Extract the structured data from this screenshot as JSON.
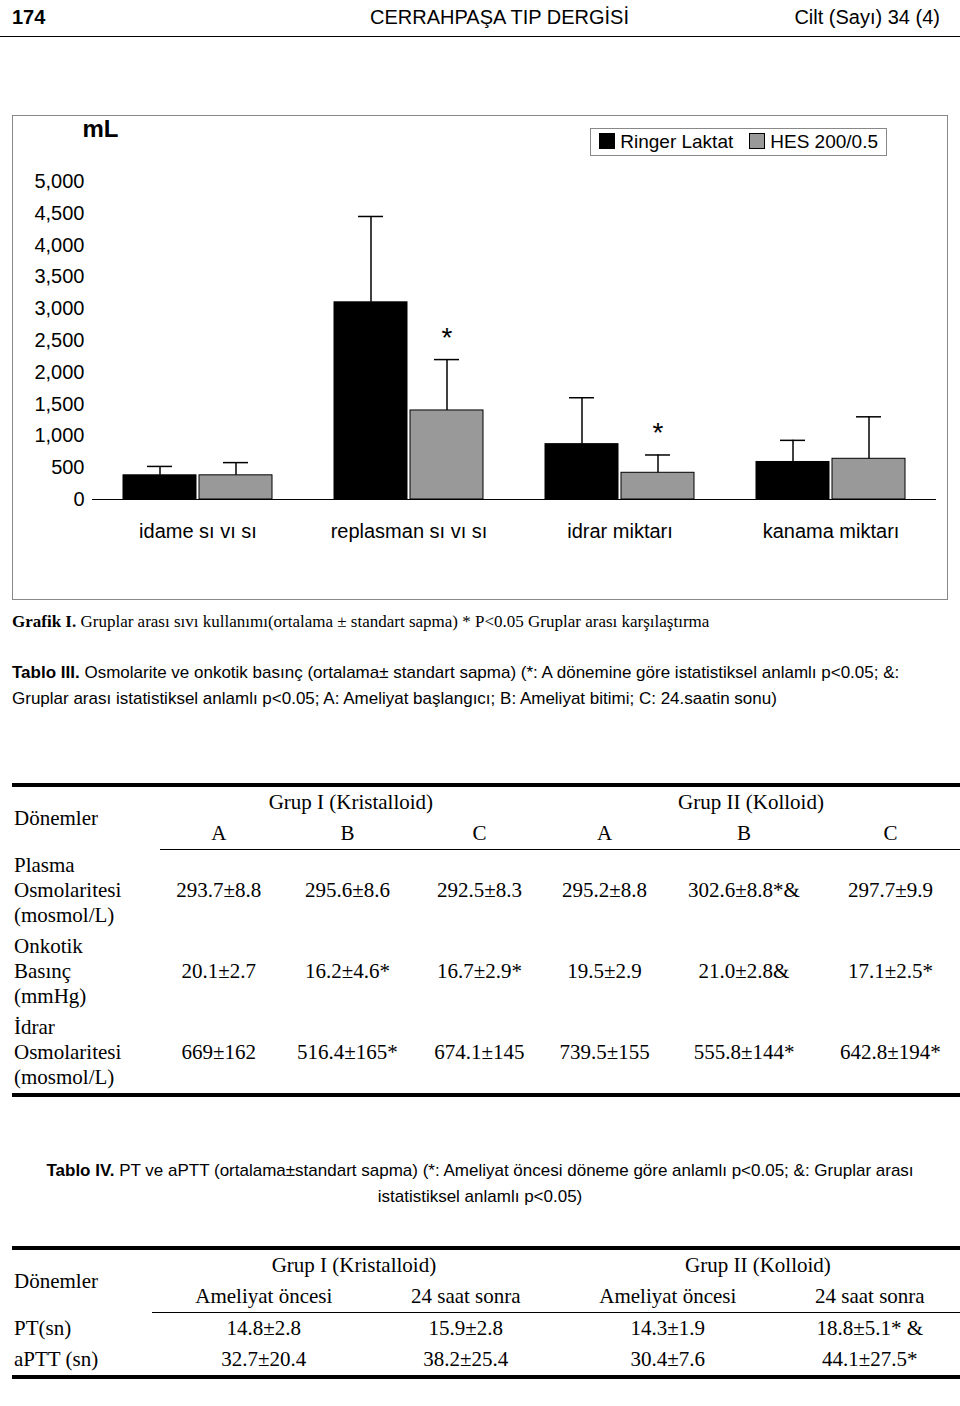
{
  "header": {
    "page": "174",
    "journal": "CERRAHPAŞA TIP DERGİSİ",
    "volume": "Cilt (Sayı) 34 (4)"
  },
  "chart_data": {
    "type": "bar",
    "y_label": "mL",
    "categories": [
      "idame sı vı sı",
      "replasman sı vı sı",
      "idrar miktarı",
      "kanama miktarı"
    ],
    "series": [
      {
        "name": "Ringer Laktat",
        "color": "#000000",
        "values": [
          380,
          3100,
          870,
          590
        ],
        "errors": [
          140,
          1350,
          730,
          340
        ]
      },
      {
        "name": "HES 200/0.5",
        "color": "#999999",
        "values": [
          380,
          1400,
          420,
          640
        ],
        "errors": [
          200,
          800,
          280,
          660
        ]
      }
    ],
    "annotations": [
      {
        "category": "replasman sı vı sı",
        "series": "HES 200/0.5",
        "text": "*"
      },
      {
        "category": "idrar miktarı",
        "series": "HES 200/0.5",
        "text": "*"
      }
    ],
    "ylim": [
      0,
      5000
    ],
    "yticks": [
      0,
      500,
      1000,
      1500,
      2000,
      2500,
      3000,
      3500,
      4000,
      4500,
      5000
    ],
    "grid": false,
    "legend": "top-right",
    "data_labels": false
  },
  "chart_caption": {
    "label": "Grafik I.",
    "text": " Gruplar arası sıvı kullanımı(ortalama ± standart sapma) * P<0.05 Gruplar arası karşılaştırma"
  },
  "tables": [
    {
      "caption_label": "Tablo III.",
      "caption": " Osmolarite ve onkotik basınç (ortalama± standart sapma) (*: A dönemine göre istatistiksel anlamlı p<0.05; &: Gruplar arası istatistiksel anlamlı p<0.05; A: Ameliyat başlangıcı; B: Ameliyat bitimi; C: 24.saatin sonu)",
      "row_header": "Dönemler",
      "groups": [
        "Grup I (Kristalloid)",
        "Grup II (Kolloid)"
      ],
      "subheaders": [
        "A",
        "B",
        "C",
        "A",
        "B",
        "C"
      ],
      "rows": [
        {
          "label": [
            "Plasma",
            "Osmolaritesi",
            "(mosmol/L)"
          ],
          "cells": [
            "293.7±8.8",
            "295.6±8.6",
            "292.5±8.3",
            "295.2±8.8",
            "302.6±8.8*&",
            "297.7±9.9"
          ]
        },
        {
          "label": [
            "Onkotik",
            "Basınç",
            "(mmHg)"
          ],
          "cells": [
            "20.1±2.7",
            "16.2±4.6*",
            "16.7±2.9*",
            "19.5±2.9",
            "21.0±2.8&",
            "17.1±2.5*"
          ]
        },
        {
          "label": [
            "İdrar",
            "Osmolaritesi",
            "(mosmol/L)"
          ],
          "cells": [
            "669±162",
            "516.4±165*",
            "674.1±145",
            "739.5±155",
            "555.8±144*",
            "642.8±194*"
          ]
        }
      ]
    },
    {
      "caption_label": "Tablo IV.",
      "caption": " PT ve aPTT (ortalama±standart sapma) (*: Ameliyat öncesi döneme göre anlamlı p<0.05; &: Gruplar arası istatistiksel anlamlı p<0.05)",
      "row_header": "Dönemler",
      "groups": [
        "Grup I (Kristalloid)",
        "Grup II (Kolloid)"
      ],
      "subheaders": [
        "Ameliyat öncesi",
        "24 saat sonra",
        "Ameliyat öncesi",
        "24 saat sonra"
      ],
      "rows": [
        {
          "label": [
            "PT(sn)"
          ],
          "cells": [
            "14.8±2.8",
            "15.9±2.8",
            "14.3±1.9",
            "18.8±5.1* &"
          ]
        },
        {
          "label": [
            "aPTT (sn)"
          ],
          "cells": [
            "32.7±20.4",
            "38.2±25.4",
            "30.4±7.6",
            "44.1±27.5*"
          ]
        }
      ]
    }
  ]
}
